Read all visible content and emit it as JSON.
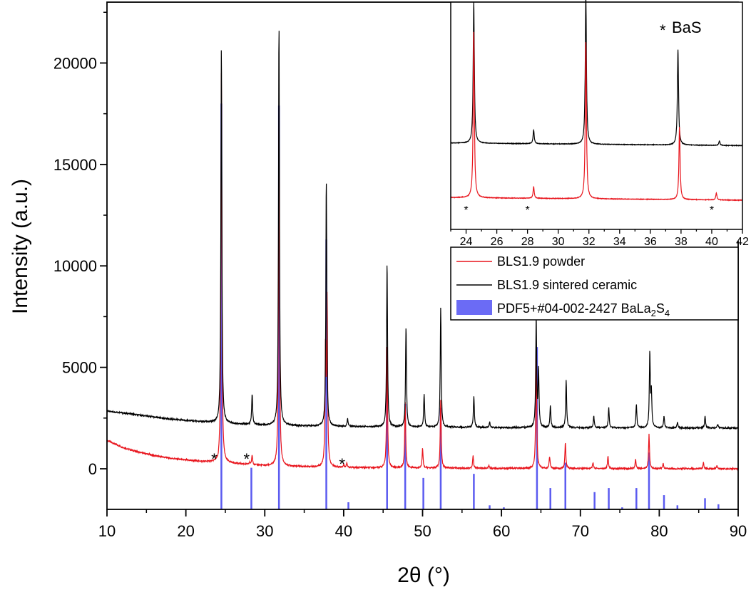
{
  "chart_data": [
    {
      "type": "line",
      "xlabel": "2θ (°)",
      "ylabel": "Intensity (a.u.)",
      "xlim": [
        10,
        90
      ],
      "ylim": [
        -2000,
        23000
      ],
      "x_ticks": [
        10,
        20,
        30,
        40,
        50,
        60,
        70,
        80,
        90
      ],
      "y_ticks": [
        0,
        5000,
        10000,
        15000,
        20000
      ],
      "series": [
        {
          "name": "BLS1.9 powder",
          "color": "#e8141c",
          "baseline": [
            [
              10,
              1400
            ],
            [
              12,
              1050
            ],
            [
              14,
              820
            ],
            [
              16,
              650
            ],
            [
              18,
              520
            ],
            [
              20,
              430
            ],
            [
              22,
              360
            ],
            [
              24,
              320
            ],
            [
              30,
              150
            ],
            [
              40,
              60
            ],
            [
              60,
              20
            ],
            [
              90,
              0
            ]
          ],
          "peaks": [
            {
              "x": 24.1,
              "y": 180
            },
            {
              "x": 24.5,
              "y": 19900
            },
            {
              "x": 28.1,
              "y": 300
            },
            {
              "x": 28.4,
              "y": 650
            },
            {
              "x": 31.8,
              "y": 17800
            },
            {
              "x": 37.7,
              "y": 5700
            },
            {
              "x": 37.9,
              "y": 8100
            },
            {
              "x": 40.0,
              "y": 200
            },
            {
              "x": 40.4,
              "y": 300
            },
            {
              "x": 45.5,
              "y": 6100
            },
            {
              "x": 47.8,
              "y": 3300
            },
            {
              "x": 50.0,
              "y": 1000
            },
            {
              "x": 52.3,
              "y": 3400
            },
            {
              "x": 56.4,
              "y": 650
            },
            {
              "x": 58.4,
              "y": 150
            },
            {
              "x": 64.4,
              "y": 6200
            },
            {
              "x": 66.1,
              "y": 600
            },
            {
              "x": 68.1,
              "y": 1300
            },
            {
              "x": 71.6,
              "y": 300
            },
            {
              "x": 73.5,
              "y": 600
            },
            {
              "x": 77.0,
              "y": 450
            },
            {
              "x": 78.7,
              "y": 1700
            },
            {
              "x": 80.5,
              "y": 250
            },
            {
              "x": 85.6,
              "y": 300
            },
            {
              "x": 87.3,
              "y": 150
            }
          ]
        },
        {
          "name": "BLS1.9 sintered ceramic",
          "color": "#000000",
          "baseline": [
            [
              10,
              2850
            ],
            [
              14,
              2650
            ],
            [
              18,
              2450
            ],
            [
              22,
              2320
            ],
            [
              26,
              2220
            ],
            [
              30,
              2150
            ],
            [
              40,
              2080
            ],
            [
              60,
              2030
            ],
            [
              90,
              2010
            ]
          ],
          "peaks": [
            {
              "x": 24.5,
              "y": 21000
            },
            {
              "x": 28.4,
              "y": 3700
            },
            {
              "x": 31.8,
              "y": 22000
            },
            {
              "x": 37.8,
              "y": 14300
            },
            {
              "x": 40.5,
              "y": 2500
            },
            {
              "x": 45.5,
              "y": 10200
            },
            {
              "x": 47.9,
              "y": 7000
            },
            {
              "x": 50.2,
              "y": 3700
            },
            {
              "x": 52.3,
              "y": 7900
            },
            {
              "x": 56.5,
              "y": 3600
            },
            {
              "x": 58.5,
              "y": 2300
            },
            {
              "x": 64.4,
              "y": 7500
            },
            {
              "x": 64.7,
              "y": 4800
            },
            {
              "x": 66.2,
              "y": 3100
            },
            {
              "x": 68.2,
              "y": 4400
            },
            {
              "x": 71.7,
              "y": 2600
            },
            {
              "x": 73.6,
              "y": 3000
            },
            {
              "x": 77.1,
              "y": 3200
            },
            {
              "x": 78.8,
              "y": 5700
            },
            {
              "x": 79.0,
              "y": 3700
            },
            {
              "x": 80.6,
              "y": 2600
            },
            {
              "x": 82.3,
              "y": 2300
            },
            {
              "x": 85.8,
              "y": 2600
            },
            {
              "x": 87.4,
              "y": 2200
            }
          ]
        },
        {
          "name": "PDF5+#04-002-2427 BaLa2S4",
          "color": "#5b5bf0",
          "type": "stick",
          "base": -2000,
          "sticks": [
            {
              "x": 24.5,
              "y": 18000
            },
            {
              "x": 28.3,
              "y": 50
            },
            {
              "x": 31.8,
              "y": 17900
            },
            {
              "x": 37.8,
              "y": 11300
            },
            {
              "x": 40.6,
              "y": -1650
            },
            {
              "x": 45.5,
              "y": 6000
            },
            {
              "x": 47.8,
              "y": 3200
            },
            {
              "x": 50.1,
              "y": -450
            },
            {
              "x": 52.3,
              "y": 3000
            },
            {
              "x": 56.5,
              "y": -250
            },
            {
              "x": 58.5,
              "y": -1800
            },
            {
              "x": 60.3,
              "y": -1900
            },
            {
              "x": 64.5,
              "y": 6000
            },
            {
              "x": 66.2,
              "y": -950
            },
            {
              "x": 68.1,
              "y": 300
            },
            {
              "x": 71.8,
              "y": -1150
            },
            {
              "x": 73.6,
              "y": -950
            },
            {
              "x": 75.3,
              "y": -1900
            },
            {
              "x": 77.1,
              "y": -950
            },
            {
              "x": 78.7,
              "y": 800
            },
            {
              "x": 80.6,
              "y": -1300
            },
            {
              "x": 82.3,
              "y": -1800
            },
            {
              "x": 85.8,
              "y": -1450
            },
            {
              "x": 87.5,
              "y": -1750
            }
          ]
        }
      ],
      "annotations": [
        {
          "text": "*",
          "x": 23.6,
          "y": 500
        },
        {
          "text": "*",
          "x": 27.7,
          "y": 500
        },
        {
          "text": "*",
          "x": 39.8,
          "y": 250
        }
      ],
      "legend": {
        "position": "middle-right",
        "entries": [
          {
            "label": "BLS1.9 powder",
            "color": "#e8141c",
            "kind": "line"
          },
          {
            "label": "BLS1.9 sintered ceramic",
            "color": "#000000",
            "kind": "line"
          },
          {
            "label_main": "PDF5+#04-002-2427 BaLa",
            "sub1": "2",
            "mid": "S",
            "sub2": "4",
            "color": "#6b6bf5",
            "kind": "box"
          }
        ]
      }
    },
    {
      "type": "line",
      "title": "BaS",
      "title_marker": "*",
      "position": "inset top-right",
      "xlim": [
        23,
        42
      ],
      "x_ticks": [
        24,
        26,
        28,
        30,
        32,
        34,
        36,
        38,
        40,
        42
      ],
      "y_ticks": [],
      "series": [
        {
          "name": "BLS1.9 sintered ceramic",
          "color": "#000000",
          "baseline": 0.38,
          "peaks": [
            {
              "x": 24.5,
              "y": 1.0
            },
            {
              "x": 28.4,
              "y": 0.44
            },
            {
              "x": 31.8,
              "y": 1.04
            },
            {
              "x": 37.8,
              "y": 0.8
            },
            {
              "x": 40.5,
              "y": 0.4
            }
          ]
        },
        {
          "name": "BLS1.9 powder",
          "color": "#e8141c",
          "baseline": 0.14,
          "peaks": [
            {
              "x": 24.5,
              "y": 0.87
            },
            {
              "x": 28.4,
              "y": 0.19
            },
            {
              "x": 31.8,
              "y": 0.83
            },
            {
              "x": 37.9,
              "y": 0.46
            },
            {
              "x": 40.3,
              "y": 0.17
            }
          ]
        }
      ],
      "annotations": [
        {
          "text": "*",
          "x": 24.0
        },
        {
          "text": "*",
          "x": 28.0
        },
        {
          "text": "*",
          "x": 40.0
        }
      ]
    }
  ]
}
